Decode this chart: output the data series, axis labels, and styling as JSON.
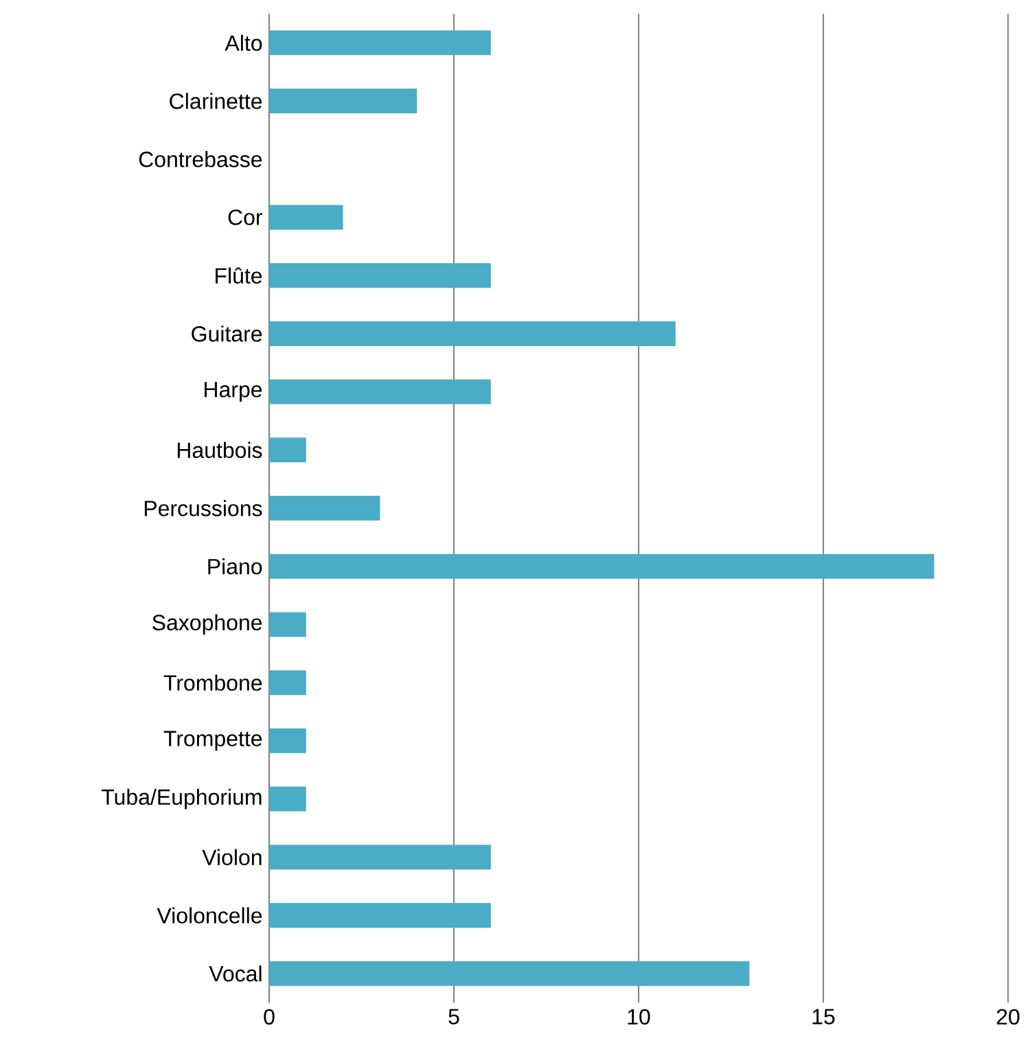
{
  "chart_data": {
    "type": "bar",
    "orientation": "horizontal",
    "categories": [
      "Alto",
      "Clarinette",
      "Contrebasse",
      "Cor",
      "Flûte",
      "Guitare",
      "Harpe",
      "Hautbois",
      "Percussions",
      "Piano",
      "Saxophone",
      "Trombone",
      "Trompette",
      "Tuba/Euphorium",
      "Violon",
      "Violoncelle",
      "Vocal"
    ],
    "values": [
      6,
      4,
      0,
      2,
      6,
      11,
      6,
      1,
      3,
      18,
      1,
      1,
      1,
      1,
      6,
      6,
      13
    ],
    "color": "#4bacc6",
    "xlim": [
      0,
      20
    ],
    "xticks": [
      0,
      5,
      10,
      15,
      20
    ],
    "grid": "x"
  }
}
